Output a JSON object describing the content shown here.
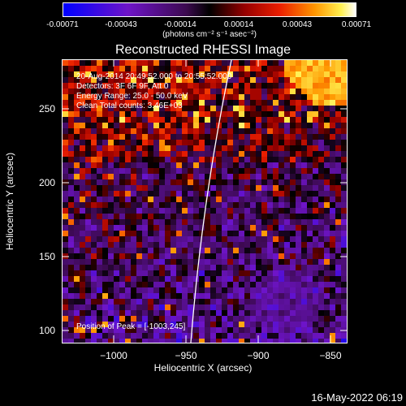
{
  "colorbar": {
    "ticks": [
      "-0.00071",
      "-0.00043",
      "-0.00014",
      "0.00014",
      "0.00043",
      "0.00071"
    ],
    "units": "(photons cm⁻² s⁻¹ asec⁻²)"
  },
  "title": "Reconstructed RHESSI Image",
  "info": {
    "line1": "20-Aug-2014 20:49:52.000 to 20:55:52.000",
    "line2": "Detectors: 3F 6F 9F, Att 0",
    "line3": "Energy Range: 25.0 - 50.0 keV",
    "line4": "Clean    Total counts: 3.46E+03",
    "peak": "Position of Peak = [-1003,245]"
  },
  "axes": {
    "xlabel": "Heliocentric X (arcsec)",
    "ylabel": "Heliocentric Y (arcsec)",
    "xticks": [
      "−1000",
      "−950",
      "−900",
      "−850"
    ],
    "yticks": [
      "250",
      "200",
      "150",
      "100"
    ]
  },
  "footer": {
    "timestamp": "16-May-2022 06:19"
  }
}
